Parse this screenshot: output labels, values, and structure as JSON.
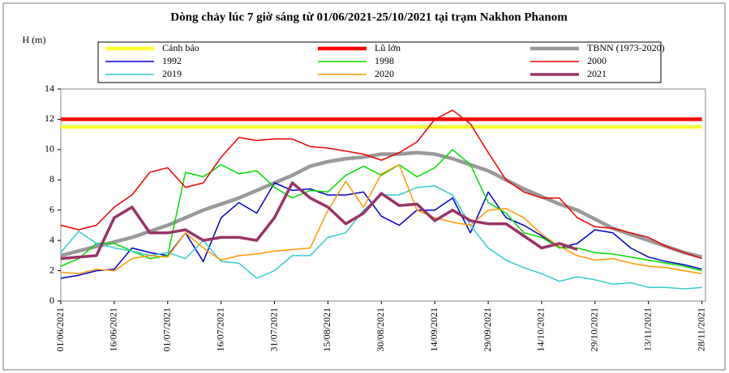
{
  "chart_data": {
    "type": "line",
    "title": "Dòng chảy lúc 7 giờ sáng từ 01/06/2021-25/10/2021 tại trạm Nakhon Phanom",
    "y_label": "H (m)",
    "x": [
      0,
      5,
      10,
      15,
      20,
      25,
      30,
      35,
      40,
      45,
      50,
      55,
      60,
      65,
      70,
      75,
      80,
      85,
      90,
      95,
      100,
      105,
      110,
      115,
      120,
      125,
      130,
      135,
      140,
      145,
      150,
      155,
      160,
      165,
      170,
      175,
      180
    ],
    "xlim": [
      0,
      181
    ],
    "xticks": [
      {
        "value": 0,
        "label": "01/06/2021"
      },
      {
        "value": 15,
        "label": "16/06/2021"
      },
      {
        "value": 30,
        "label": "01/07/2021"
      },
      {
        "value": 45,
        "label": "16/07/2021"
      },
      {
        "value": 60,
        "label": "31/07/2021"
      },
      {
        "value": 75,
        "label": "15/08/2021"
      },
      {
        "value": 90,
        "label": "30/08/2021"
      },
      {
        "value": 105,
        "label": "14/09/2021"
      },
      {
        "value": 120,
        "label": "29/09/2021"
      },
      {
        "value": 135,
        "label": "14/10/2021"
      },
      {
        "value": 150,
        "label": "29/10/2021"
      },
      {
        "value": 165,
        "label": "13/11/2021"
      },
      {
        "value": 180,
        "label": "28/11/2021"
      }
    ],
    "ylim": [
      0,
      14
    ],
    "yticks": [
      0,
      2,
      4,
      6,
      8,
      10,
      12,
      14
    ],
    "series": [
      {
        "name": "Cảnh báo",
        "color": "#ffff33",
        "values": [
          11.5,
          11.5,
          11.5,
          11.5,
          11.5,
          11.5,
          11.5,
          11.5,
          11.5,
          11.5,
          11.5,
          11.5,
          11.5,
          11.5,
          11.5,
          11.5,
          11.5,
          11.5,
          11.5,
          11.5,
          11.5,
          11.5,
          11.5,
          11.5,
          11.5,
          11.5,
          11.5,
          11.5,
          11.5,
          11.5,
          11.5,
          11.5,
          11.5,
          11.5,
          11.5,
          11.5,
          11.5
        ]
      },
      {
        "name": "Lũ lớn",
        "color": "#ff0000",
        "values": [
          12,
          12,
          12,
          12,
          12,
          12,
          12,
          12,
          12,
          12,
          12,
          12,
          12,
          12,
          12,
          12,
          12,
          12,
          12,
          12,
          12,
          12,
          12,
          12,
          12,
          12,
          12,
          12,
          12,
          12,
          12,
          12,
          12,
          12,
          12,
          12,
          12
        ]
      },
      {
        "name": "TBNN (1973-2020)",
        "color": "#999999",
        "values": [
          3.0,
          3.3,
          3.6,
          3.9,
          4.2,
          4.6,
          5.0,
          5.5,
          6.0,
          6.4,
          6.8,
          7.3,
          7.8,
          8.3,
          8.9,
          9.2,
          9.4,
          9.5,
          9.7,
          9.7,
          9.8,
          9.7,
          9.4,
          9.0,
          8.6,
          8.0,
          7.4,
          6.9,
          6.4,
          6.0,
          5.4,
          4.8,
          4.4,
          4.0,
          3.6,
          3.2,
          2.9
        ]
      },
      {
        "name": "1992",
        "color": "#0000cc",
        "values": [
          1.5,
          1.7,
          2.0,
          2.1,
          3.5,
          3.2,
          3.0,
          4.5,
          2.6,
          5.5,
          6.5,
          5.8,
          7.8,
          7.3,
          7.4,
          7.0,
          7.0,
          7.2,
          5.6,
          5.0,
          6.0,
          6.0,
          6.8,
          4.5,
          7.2,
          5.5,
          5.0,
          4.3,
          3.5,
          3.8,
          4.7,
          4.5,
          3.5,
          2.9,
          2.6,
          2.4,
          2.1
        ]
      },
      {
        "name": "1998",
        "color": "#00dd00",
        "values": [
          2.3,
          2.8,
          3.8,
          3.8,
          3.3,
          2.8,
          3.0,
          8.5,
          8.2,
          9.0,
          8.4,
          8.6,
          7.5,
          6.8,
          7.3,
          7.2,
          8.3,
          8.9,
          8.3,
          9.0,
          8.2,
          8.8,
          10.0,
          9.0,
          6.5,
          5.8,
          4.5,
          4.2,
          3.5,
          3.5,
          3.2,
          3.1,
          2.9,
          2.7,
          2.5,
          2.3,
          2.0
        ]
      },
      {
        "name": "2000",
        "color": "#ee0000",
        "values": [
          5.0,
          4.7,
          5.0,
          6.2,
          7.0,
          8.5,
          8.8,
          7.5,
          7.8,
          9.5,
          10.8,
          10.6,
          10.7,
          10.7,
          10.2,
          10.1,
          9.9,
          9.7,
          9.3,
          9.8,
          10.5,
          12.0,
          12.6,
          11.7,
          9.8,
          8.0,
          7.2,
          6.8,
          6.8,
          5.5,
          4.9,
          4.8,
          4.5,
          4.2,
          3.6,
          3.2,
          2.8
        ]
      },
      {
        "name": "2019",
        "color": "#33cccc",
        "values": [
          3.2,
          4.6,
          3.8,
          3.5,
          3.3,
          3.0,
          3.2,
          2.8,
          4.0,
          2.6,
          2.5,
          1.5,
          2.0,
          3.0,
          3.0,
          4.2,
          4.5,
          6.0,
          7.0,
          7.0,
          7.5,
          7.6,
          7.0,
          5.0,
          3.5,
          2.7,
          2.2,
          1.8,
          1.3,
          1.6,
          1.4,
          1.1,
          1.2,
          0.9,
          0.9,
          0.8,
          0.9
        ]
      },
      {
        "name": "2020",
        "color": "#ff9900",
        "values": [
          1.9,
          1.8,
          2.1,
          2.0,
          2.8,
          3.0,
          2.9,
          4.5,
          3.5,
          2.7,
          3.0,
          3.1,
          3.3,
          3.4,
          3.5,
          6.0,
          7.9,
          6.2,
          8.4,
          9.0,
          6.0,
          5.5,
          5.2,
          5.0,
          6.0,
          6.1,
          5.5,
          4.4,
          3.6,
          3.0,
          2.7,
          2.8,
          2.5,
          2.3,
          2.2,
          2.0,
          1.8
        ]
      },
      {
        "name": "2021",
        "color": "#993366",
        "values": [
          2.8,
          2.9,
          3.0,
          5.5,
          6.2,
          4.5,
          4.5,
          4.7,
          4.0,
          4.2,
          4.2,
          4.0,
          5.5,
          7.8,
          6.8,
          6.2,
          5.1,
          5.8,
          7.1,
          6.3,
          6.4,
          5.3,
          6.0,
          5.3,
          5.1,
          5.1,
          4.3,
          3.5,
          3.8,
          3.4,
          null,
          null,
          null,
          null,
          null,
          null,
          null
        ]
      }
    ]
  }
}
